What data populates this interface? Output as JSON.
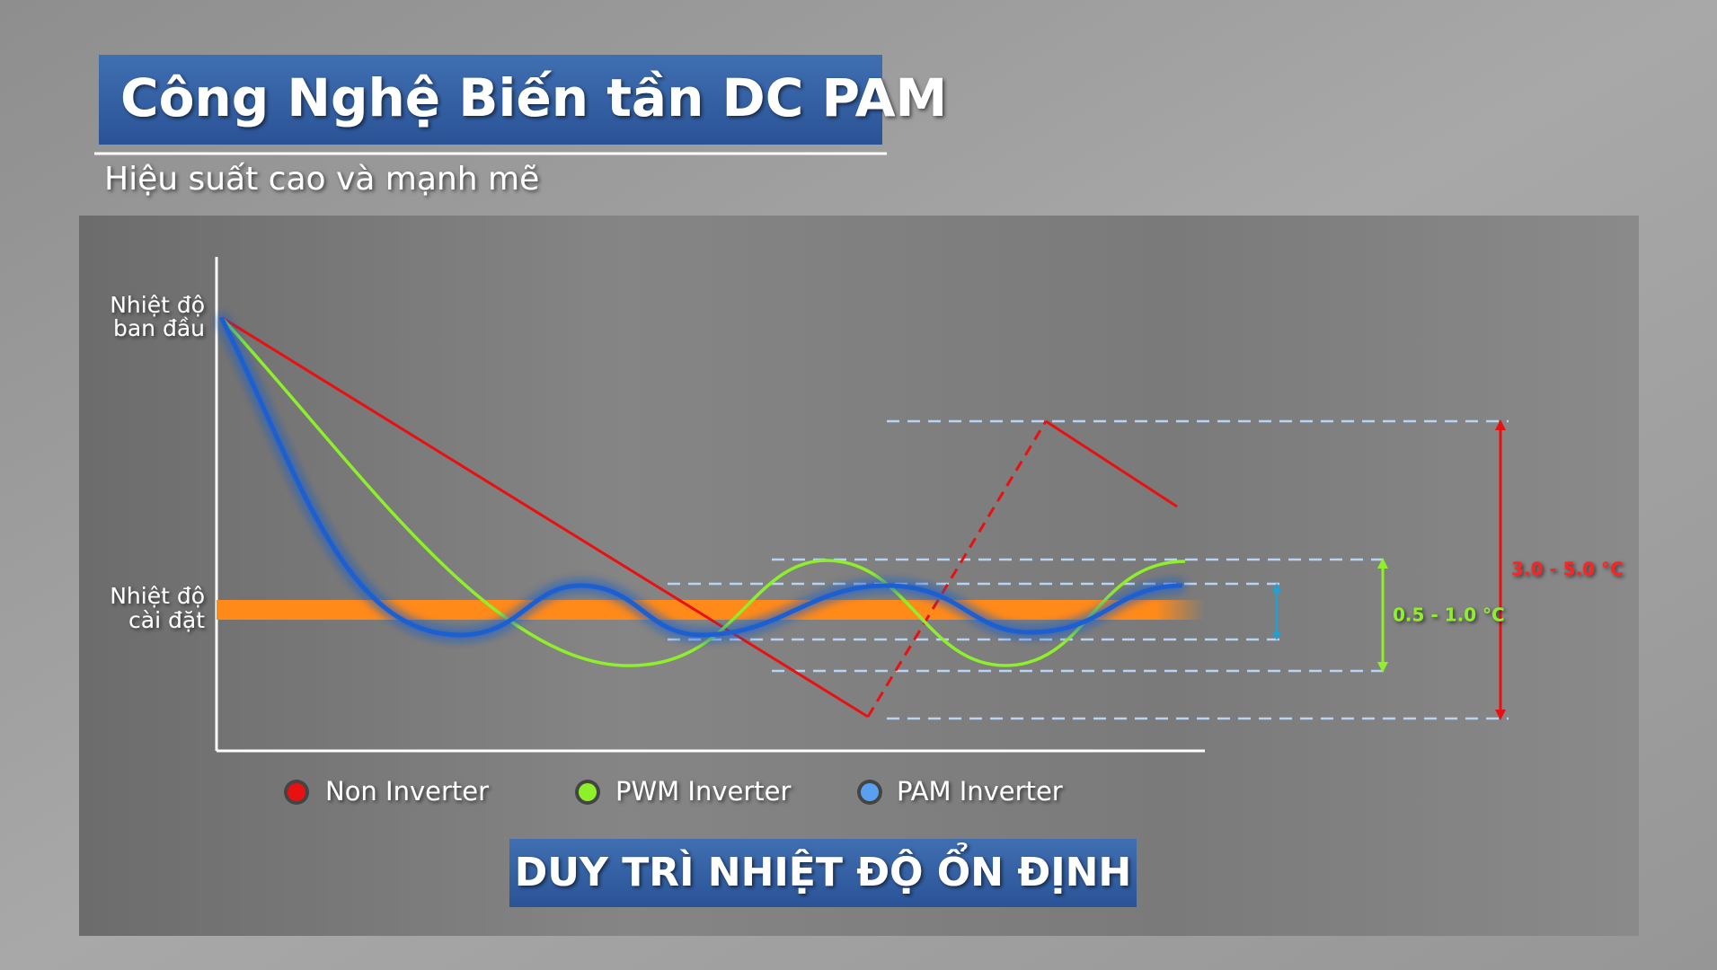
{
  "header": {
    "title": "Công Nghệ Biến tần DC PAM",
    "subtitle": "Hiệu suất cao và mạnh mẽ"
  },
  "diagram": {
    "start_label": [
      "Nhiệt độ",
      "ban đầu"
    ],
    "set_label": [
      "Nhiệt độ",
      "cài đặt"
    ],
    "range_pwm": "0.5 - 1.0 °C",
    "range_non": "3.0 - 5.0 °C",
    "legend": [
      "Non Inverter",
      "PWM Inverter",
      "PAM Inverter"
    ]
  },
  "footer": {
    "banner": "DUY TRÌ NHIỆT ĐỘ ỔN ĐỊNH"
  }
}
